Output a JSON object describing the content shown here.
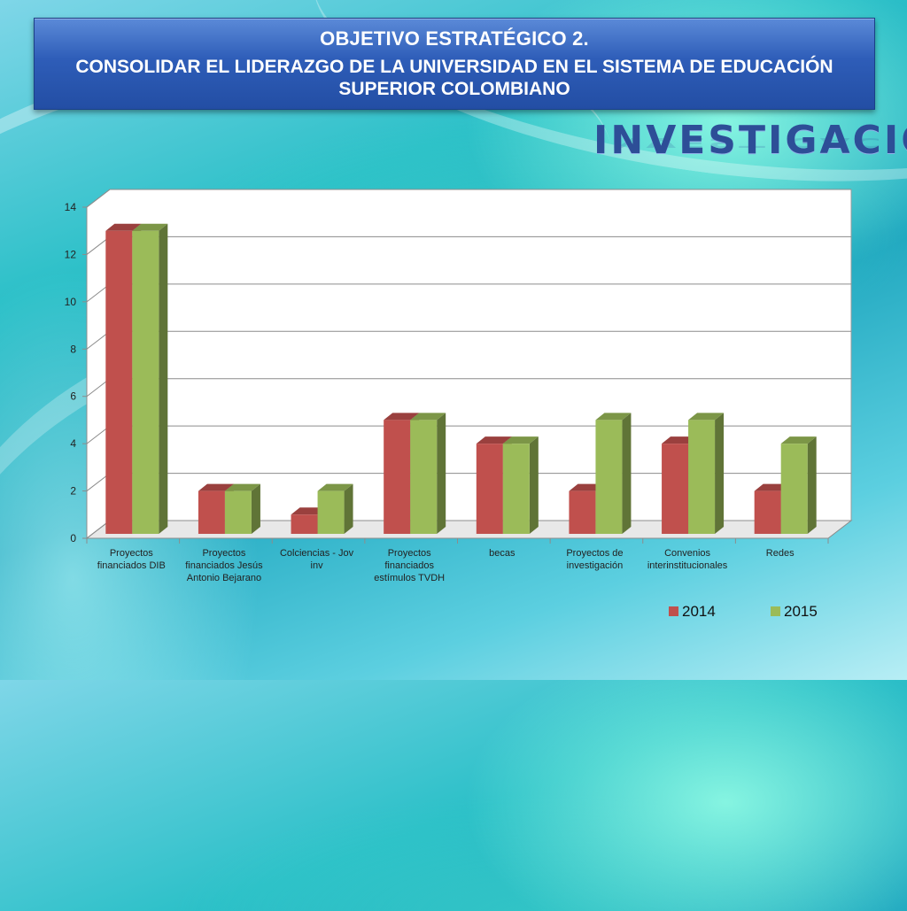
{
  "banner": {
    "line1": "OBJETIVO ESTRATÉGICO 2.",
    "line2": "CONSOLIDAR EL LIDERAZGO DE LA UNIVERSIDAD EN EL SISTEMA DE EDUCACIÓN SUPERIOR COLOMBIANO"
  },
  "section_title": "INVESTIGACIÓN",
  "colors": {
    "series_2014": "#c0504d",
    "series_2015": "#9bbb59",
    "banner": "#2e5db8",
    "title": "#2d4e97"
  },
  "chart_data": {
    "type": "bar",
    "three_d": true,
    "categories": [
      [
        "Proyectos",
        "financiados DIB"
      ],
      [
        "Proyectos",
        "financiados Jesús",
        "Antonio Bejarano"
      ],
      [
        "Colciencias - Jov",
        "inv"
      ],
      [
        "Proyectos",
        "financiados",
        "estímulos TVDH"
      ],
      [
        "becas"
      ],
      [
        "Proyectos de",
        "investigación"
      ],
      [
        "Convenios",
        "interinstitucionales"
      ],
      [
        "Redes"
      ]
    ],
    "series": [
      {
        "name": "2014",
        "values": [
          13,
          2,
          1,
          5,
          4,
          2,
          4,
          2
        ]
      },
      {
        "name": "2015",
        "values": [
          13,
          2,
          2,
          5,
          4,
          5,
          5,
          4
        ]
      }
    ],
    "ylim": [
      0,
      14
    ],
    "yticks": [
      "0",
      "2",
      "4",
      "6",
      "8",
      "10",
      "12",
      "14"
    ],
    "grid": true,
    "legend_position": "bottom-right",
    "title": "",
    "xlabel": "",
    "ylabel": ""
  }
}
